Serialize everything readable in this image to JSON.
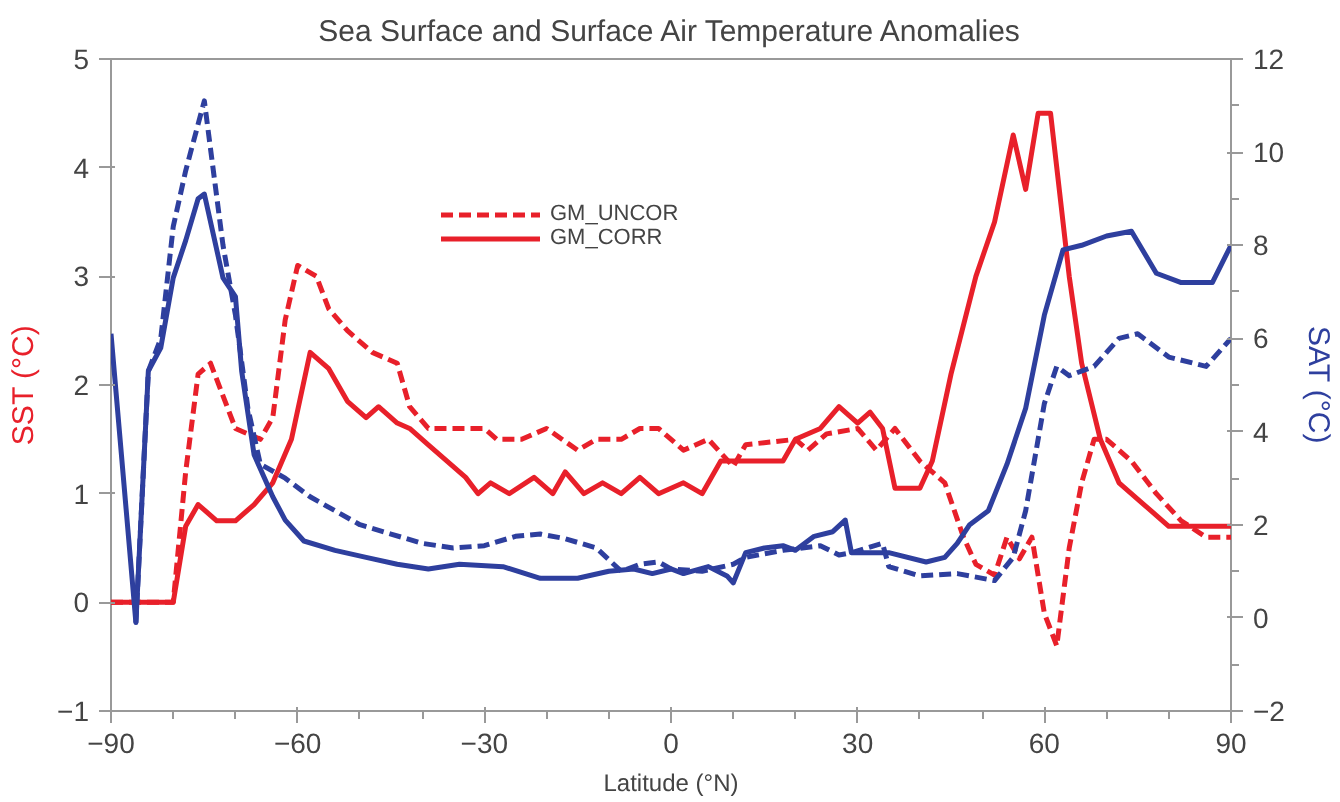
{
  "chart_data": {
    "type": "line",
    "title": "Sea Surface and Surface Air Temperature Anomalies",
    "xlabel": "Latitude (°N)",
    "ylabel": "SST (°C)",
    "y2label": "SAT (°C)",
    "xlim": [
      -90,
      90
    ],
    "xticks": [
      -90,
      -60,
      -30,
      0,
      30,
      60,
      90
    ],
    "ylim": [
      -1,
      5
    ],
    "yticks": [
      -1,
      0,
      1,
      2,
      3,
      4,
      5
    ],
    "y2lim": [
      -2,
      12
    ],
    "y2ticks": [
      -2,
      0,
      2,
      4,
      6,
      8,
      10,
      12
    ],
    "grid": false,
    "legend": "top",
    "marker": "none",
    "series": [
      {
        "name": "GM_UNCOR",
        "color": "#e8202a",
        "line_style": "dashed",
        "x": [
          -90,
          -80,
          -78,
          -76,
          -74,
          -72,
          -70,
          -66,
          -64,
          -62,
          -60,
          -57,
          -55,
          -52,
          -48,
          -44,
          -42,
          -39,
          -35,
          -30,
          -28,
          -24,
          -20,
          -15,
          -12,
          -8,
          -5,
          -2,
          2,
          6,
          10,
          12,
          20,
          22,
          25,
          30,
          33,
          36,
          40,
          44,
          47,
          49,
          52,
          54,
          56,
          58,
          60,
          62,
          64,
          66,
          68,
          70,
          74,
          78,
          82,
          86,
          90
        ],
        "values": [
          0,
          0,
          1.2,
          2.1,
          2.2,
          1.9,
          1.6,
          1.5,
          1.7,
          2.6,
          3.1,
          3.0,
          2.7,
          2.5,
          2.3,
          2.2,
          1.8,
          1.6,
          1.6,
          1.6,
          1.5,
          1.5,
          1.6,
          1.4,
          1.5,
          1.5,
          1.6,
          1.6,
          1.4,
          1.5,
          1.25,
          1.45,
          1.5,
          1.4,
          1.55,
          1.6,
          1.4,
          1.6,
          1.3,
          1.1,
          0.6,
          0.35,
          0.25,
          0.6,
          0.4,
          0.6,
          -0.1,
          -0.4,
          0.5,
          1.1,
          1.5,
          1.5,
          1.3,
          1.0,
          0.75,
          0.6,
          0.6
        ]
      },
      {
        "name": "GM_CORR",
        "color": "#e8202a",
        "line_style": "solid",
        "x": [
          -90,
          -80,
          -78,
          -76,
          -73,
          -70,
          -67,
          -64,
          -61,
          -58,
          -55,
          -52,
          -49,
          -47,
          -44,
          -42,
          -39,
          -36,
          -33,
          -31,
          -29,
          -26,
          -22,
          -19,
          -17,
          -14,
          -11,
          -8,
          -5,
          -2,
          2,
          5,
          8,
          18,
          20,
          24,
          27,
          30,
          32,
          34,
          36,
          40,
          42,
          45,
          49,
          52,
          55,
          57,
          59,
          61,
          64,
          66,
          69,
          72,
          76,
          80,
          90
        ],
        "values": [
          0,
          0,
          0.7,
          0.9,
          0.75,
          0.75,
          0.9,
          1.1,
          1.5,
          2.3,
          2.15,
          1.85,
          1.7,
          1.8,
          1.65,
          1.6,
          1.45,
          1.3,
          1.15,
          1.0,
          1.1,
          1.0,
          1.15,
          1.0,
          1.2,
          1.0,
          1.1,
          1.0,
          1.15,
          1.0,
          1.1,
          1.0,
          1.3,
          1.3,
          1.5,
          1.6,
          1.8,
          1.65,
          1.75,
          1.6,
          1.05,
          1.05,
          1.3,
          2.1,
          3.0,
          3.5,
          4.3,
          3.8,
          4.5,
          4.5,
          3.0,
          2.2,
          1.5,
          1.1,
          0.9,
          0.7,
          0.7
        ]
      },
      {
        "color": "#2e3f9e",
        "line_style": "dashed",
        "axis": "y2",
        "x": [
          -86,
          -84,
          -82,
          -80,
          -78,
          -76,
          -75,
          -72,
          -70,
          -68,
          -66,
          -62,
          -58,
          -54,
          -50,
          -45,
          -40,
          -35,
          -30,
          -25,
          -21,
          -17,
          -12,
          -8,
          -5,
          -2,
          0,
          5,
          10,
          12,
          18,
          24,
          27,
          29,
          34,
          35,
          40,
          46,
          52,
          55,
          57,
          60,
          62,
          64,
          68,
          72,
          75,
          80,
          86,
          90
        ],
        "values": [
          -0.1,
          5.3,
          6.0,
          8.4,
          9.6,
          10.6,
          11.1,
          8.0,
          6.5,
          4.5,
          3.3,
          3.0,
          2.6,
          2.3,
          2.0,
          1.8,
          1.6,
          1.5,
          1.55,
          1.75,
          1.8,
          1.7,
          1.5,
          1.0,
          1.15,
          1.2,
          1.05,
          1.0,
          1.15,
          1.3,
          1.45,
          1.55,
          1.35,
          1.4,
          1.6,
          1.1,
          0.9,
          0.95,
          0.8,
          1.3,
          2.3,
          4.6,
          5.4,
          5.2,
          5.4,
          6.0,
          6.1,
          5.6,
          5.4,
          6.0
        ]
      },
      {
        "color": "#2e3f9e",
        "line_style": "solid",
        "axis": "y2",
        "x": [
          -90,
          -86,
          -84,
          -82,
          -80,
          -78,
          -76,
          -75,
          -72,
          -70,
          -69,
          -67,
          -64,
          -62,
          -59,
          -54,
          -49,
          -44,
          -39,
          -34,
          -27,
          -21,
          -15,
          -10,
          -6,
          -3,
          0,
          2,
          6,
          9,
          10,
          12,
          15,
          18,
          20,
          23,
          26,
          28,
          29,
          35,
          41,
          44,
          46,
          48,
          51,
          54,
          57,
          60,
          63,
          66,
          70,
          74,
          78,
          82,
          87,
          90
        ],
        "values": [
          6.1,
          -0.1,
          5.3,
          5.8,
          7.3,
          8.1,
          9.0,
          9.1,
          7.3,
          6.9,
          5.3,
          3.5,
          2.6,
          2.1,
          1.65,
          1.45,
          1.3,
          1.15,
          1.05,
          1.15,
          1.1,
          0.85,
          0.85,
          1.0,
          1.05,
          0.95,
          1.05,
          0.95,
          1.1,
          0.9,
          0.75,
          1.4,
          1.5,
          1.55,
          1.45,
          1.75,
          1.85,
          2.1,
          1.4,
          1.4,
          1.2,
          1.3,
          1.6,
          2.0,
          2.3,
          3.3,
          4.5,
          6.5,
          7.9,
          8.0,
          8.2,
          8.3,
          7.4,
          7.2,
          7.2,
          8.0
        ]
      }
    ]
  }
}
